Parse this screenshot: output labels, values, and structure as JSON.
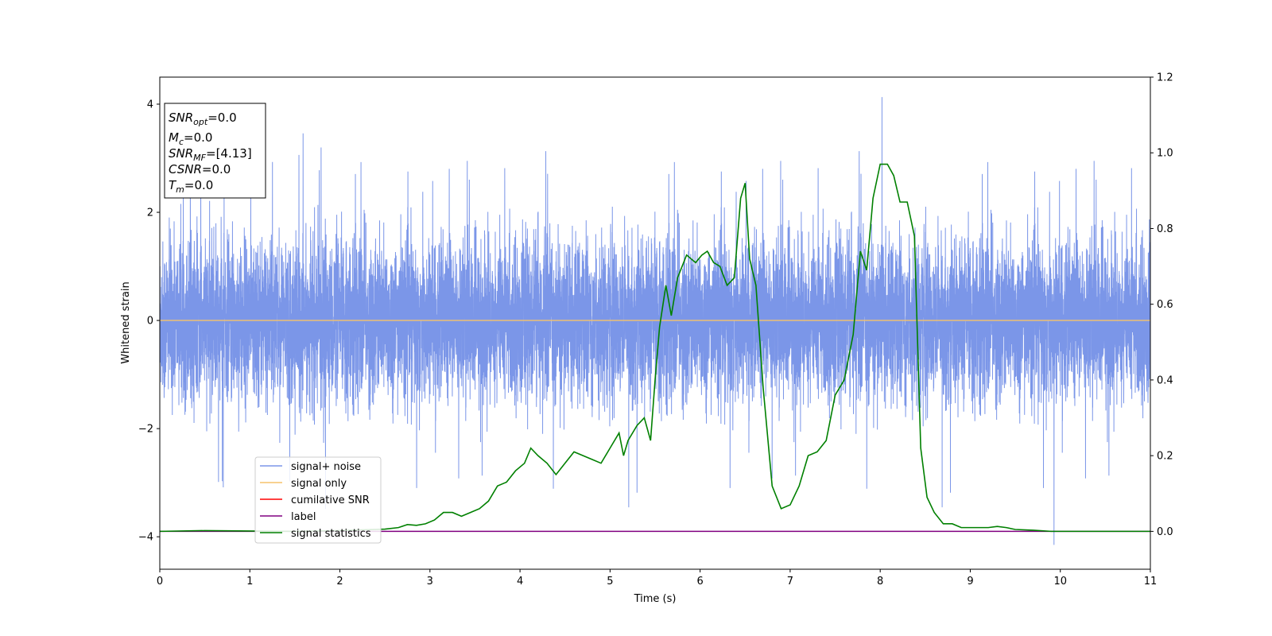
{
  "chart_data": {
    "type": "line",
    "xlabel": "Time (s)",
    "ylabel": "Whitened strain",
    "xlim": [
      0,
      11
    ],
    "ylim": [
      -4.6,
      4.5
    ],
    "y2lim": [
      -0.1,
      1.2
    ],
    "x_ticks": [
      "0",
      "1",
      "2",
      "3",
      "4",
      "5",
      "6",
      "7",
      "8",
      "9",
      "10",
      "11"
    ],
    "y_ticks": [
      "-4",
      "-2",
      "0",
      "2",
      "4"
    ],
    "y2_ticks": [
      "0.0",
      "0.2",
      "0.4",
      "0.6",
      "0.8",
      "1.0",
      "1.2"
    ],
    "grid": false,
    "legend_position": "lower-left",
    "annotation": [
      {
        "base": "SNR",
        "sub": "opt",
        "value": "=0.0"
      },
      {
        "base": "M",
        "sub": "c",
        "value": "=0.0"
      },
      {
        "base": "SNR",
        "sub": "MF",
        "value": "=[4.13]"
      },
      {
        "base": "CSNR",
        "sub": "",
        "value": "=0.0"
      },
      {
        "base": "T",
        "sub": "m",
        "value": "=0.0"
      }
    ],
    "series": [
      {
        "name": "signal+ noise",
        "color": "#7b96e8",
        "axis": "left",
        "style": "noise",
        "values_summary": {
          "mean": 0.0,
          "typical_range": [
            -2.1,
            2.1
          ],
          "max": 4.13,
          "min": -4.15,
          "max_at": 8.02,
          "min_at": 9.93
        }
      },
      {
        "name": "signal only",
        "color": "#f5c26b",
        "axis": "left",
        "x": [
          0,
          11
        ],
        "y": [
          0,
          0
        ]
      },
      {
        "name": "cumilative SNR",
        "color": "#ff0000",
        "axis": "left",
        "x": [],
        "y": []
      },
      {
        "name": "label",
        "color": "#800080",
        "axis": "right",
        "x": [
          0,
          11
        ],
        "y": [
          0,
          0
        ]
      },
      {
        "name": "signal statistics",
        "color": "#008000",
        "axis": "right",
        "x": [
          0,
          0.5,
          1.0,
          1.5,
          2.0,
          2.5,
          2.65,
          2.75,
          2.85,
          2.95,
          3.05,
          3.15,
          3.25,
          3.35,
          3.45,
          3.55,
          3.65,
          3.75,
          3.85,
          3.95,
          4.05,
          4.12,
          4.2,
          4.3,
          4.4,
          4.5,
          4.6,
          4.7,
          4.8,
          4.9,
          5.0,
          5.1,
          5.15,
          5.2,
          5.3,
          5.38,
          5.45,
          5.5,
          5.55,
          5.62,
          5.68,
          5.75,
          5.85,
          5.95,
          6.02,
          6.08,
          6.15,
          6.22,
          6.3,
          6.38,
          6.45,
          6.5,
          6.55,
          6.62,
          6.7,
          6.8,
          6.9,
          7.0,
          7.1,
          7.2,
          7.3,
          7.4,
          7.5,
          7.6,
          7.7,
          7.78,
          7.85,
          7.92,
          8.0,
          8.08,
          8.15,
          8.22,
          8.3,
          8.38,
          8.45,
          8.52,
          8.6,
          8.7,
          8.8,
          8.9,
          9.0,
          9.1,
          9.2,
          9.3,
          9.4,
          9.5,
          9.7,
          9.9,
          10.2,
          11.0
        ],
        "y": [
          0.0,
          0.002,
          0.001,
          0.0,
          0.002,
          0.006,
          0.01,
          0.018,
          0.016,
          0.02,
          0.03,
          0.05,
          0.05,
          0.04,
          0.05,
          0.06,
          0.08,
          0.12,
          0.13,
          0.16,
          0.18,
          0.22,
          0.2,
          0.18,
          0.15,
          0.18,
          0.21,
          0.2,
          0.19,
          0.18,
          0.22,
          0.26,
          0.2,
          0.24,
          0.28,
          0.3,
          0.24,
          0.4,
          0.54,
          0.65,
          0.57,
          0.67,
          0.73,
          0.71,
          0.73,
          0.74,
          0.71,
          0.7,
          0.65,
          0.67,
          0.88,
          0.92,
          0.72,
          0.65,
          0.38,
          0.12,
          0.06,
          0.07,
          0.12,
          0.2,
          0.21,
          0.24,
          0.36,
          0.4,
          0.52,
          0.74,
          0.69,
          0.88,
          0.97,
          0.97,
          0.94,
          0.87,
          0.87,
          0.78,
          0.22,
          0.09,
          0.05,
          0.02,
          0.02,
          0.01,
          0.01,
          0.01,
          0.01,
          0.013,
          0.01,
          0.005,
          0.003,
          0.0,
          0.0,
          0.0
        ]
      }
    ]
  }
}
